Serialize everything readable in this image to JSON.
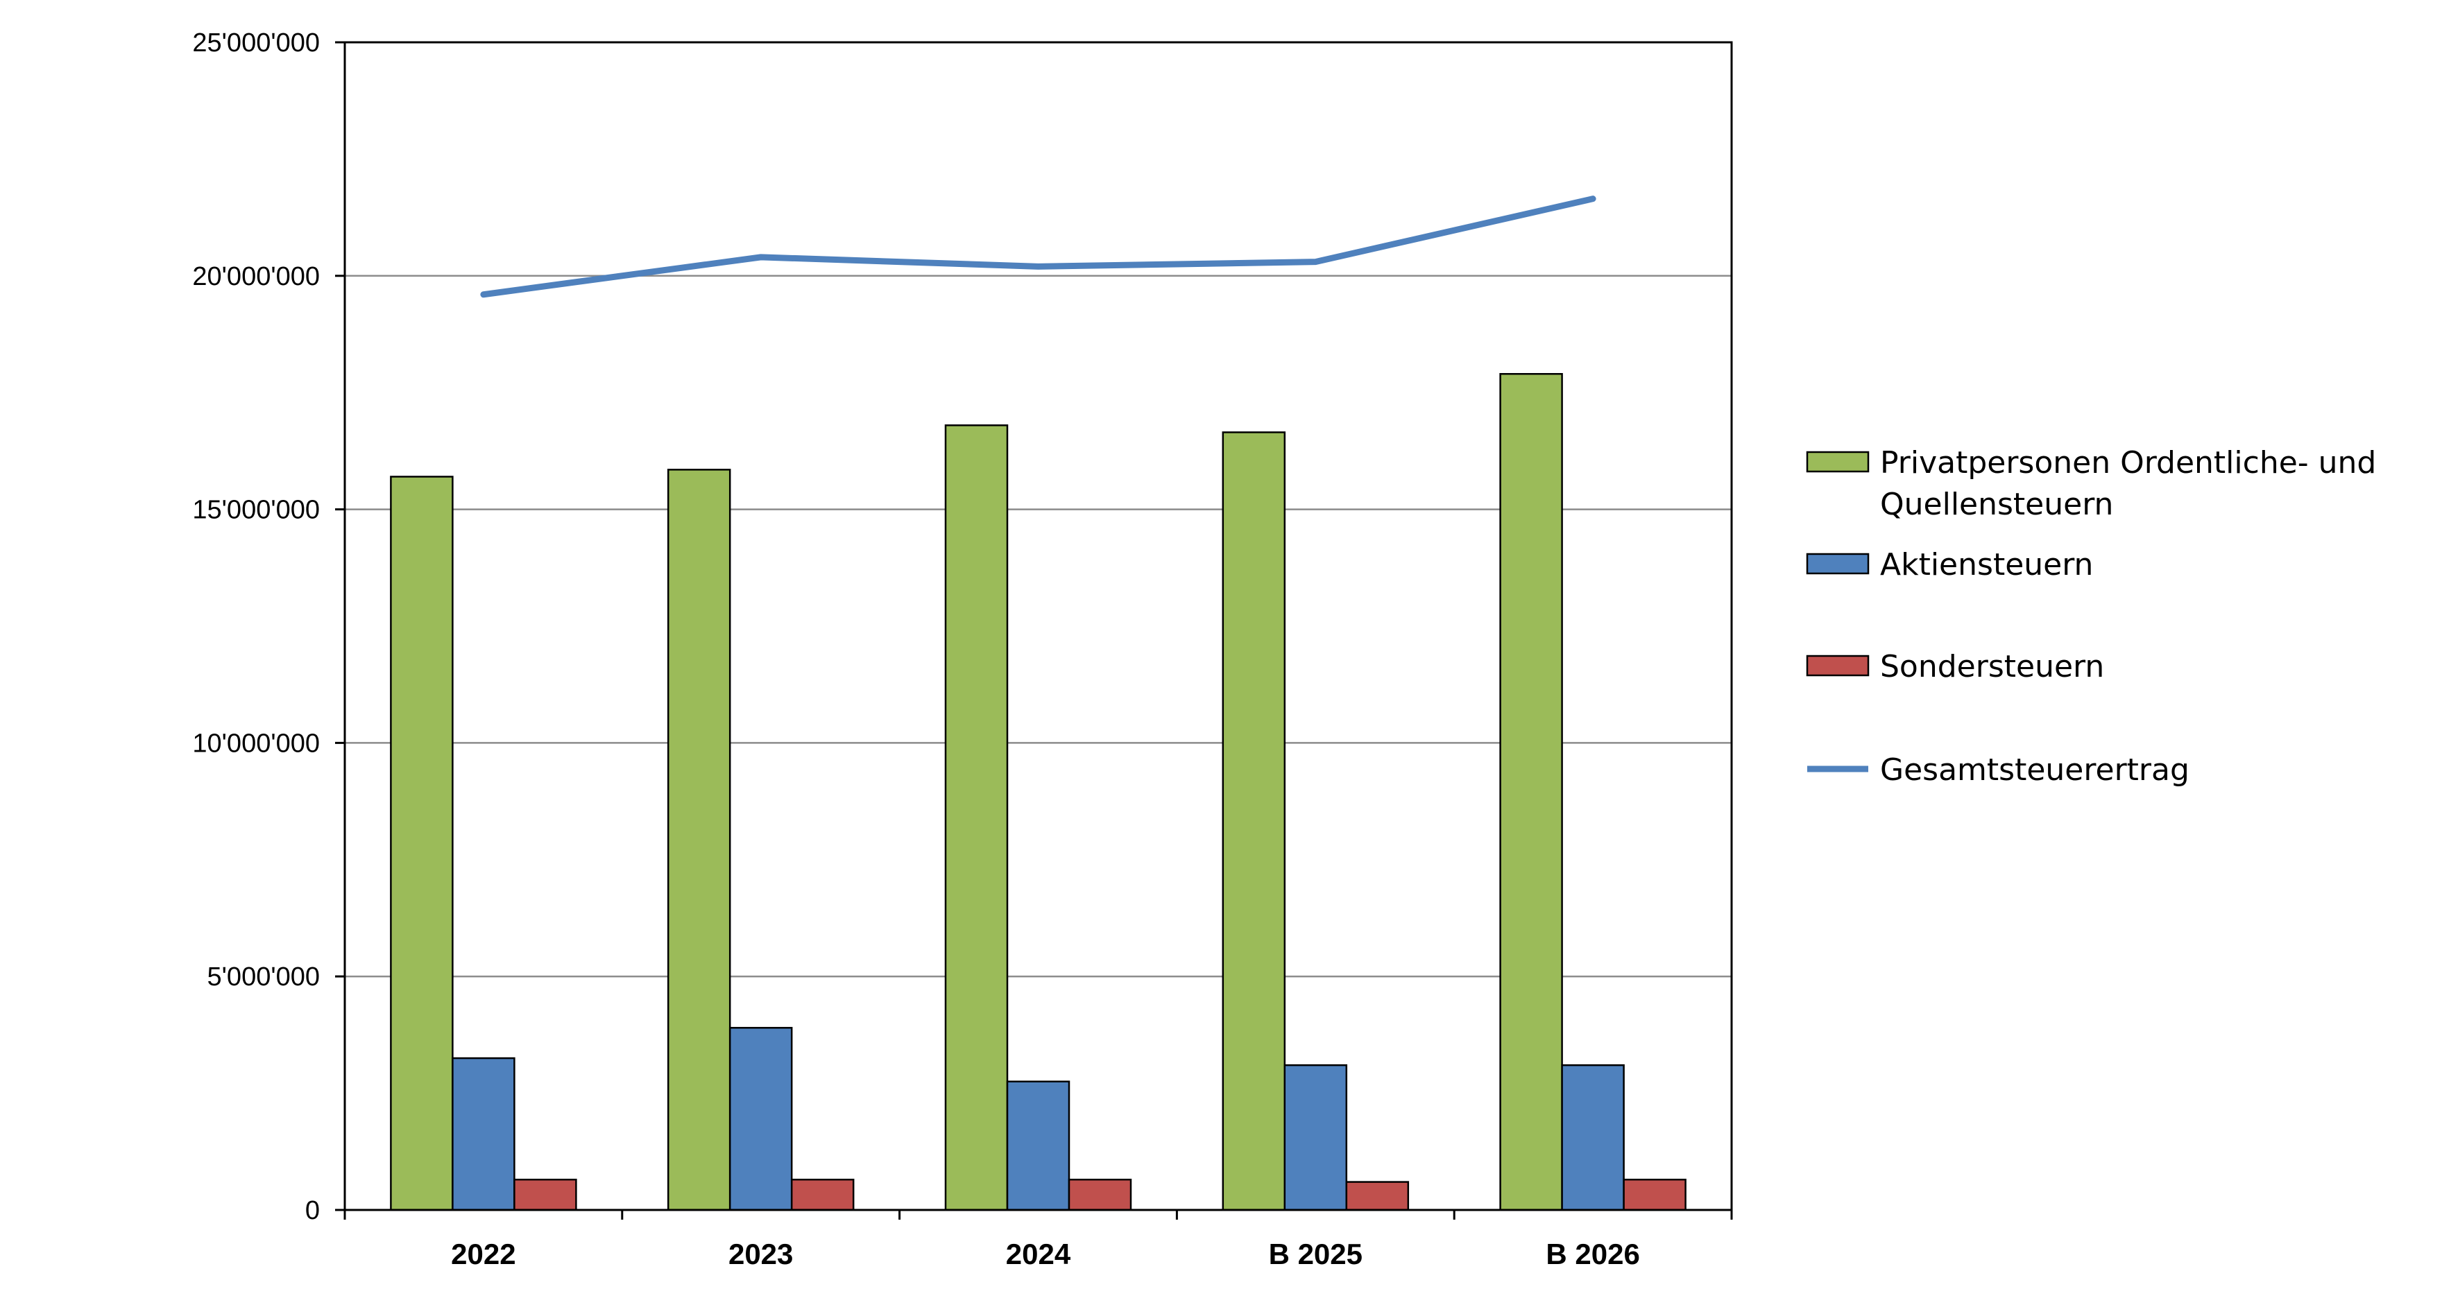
{
  "chart_data": {
    "type": "bar",
    "title": "",
    "xlabel": "",
    "ylabel": "",
    "categories": [
      "2022",
      "2023",
      "2024",
      "B 2025",
      "B 2026"
    ],
    "ylim": [
      0,
      25000000
    ],
    "yticks": [
      0,
      5000000,
      10000000,
      15000000,
      20000000,
      25000000
    ],
    "ytick_labels": [
      "0",
      "5'000'000",
      "10'000'000",
      "15'000'000",
      "20'000'000",
      "25'000'000"
    ],
    "grid": true,
    "legend_position": "right",
    "series": [
      {
        "name_lines": [
          "Privatpersonen Ordentliche- und",
          "Quellensteuern"
        ],
        "kind": "bar",
        "color": "#9BBB59",
        "values": [
          15700000,
          15850000,
          16800000,
          16650000,
          17900000
        ]
      },
      {
        "name_lines": [
          "Aktiensteuern"
        ],
        "kind": "bar",
        "color": "#4F81BD",
        "values": [
          3250000,
          3900000,
          2750000,
          3100000,
          3100000
        ]
      },
      {
        "name_lines": [
          "Sondersteuern"
        ],
        "kind": "bar",
        "color": "#C0504D",
        "values": [
          650000,
          650000,
          650000,
          600000,
          650000
        ]
      },
      {
        "name_lines": [
          "Gesamtsteuerertrag"
        ],
        "kind": "line",
        "color": "#4F81BD",
        "values": [
          19600000,
          20400000,
          20200000,
          20300000,
          21650000
        ]
      }
    ]
  }
}
